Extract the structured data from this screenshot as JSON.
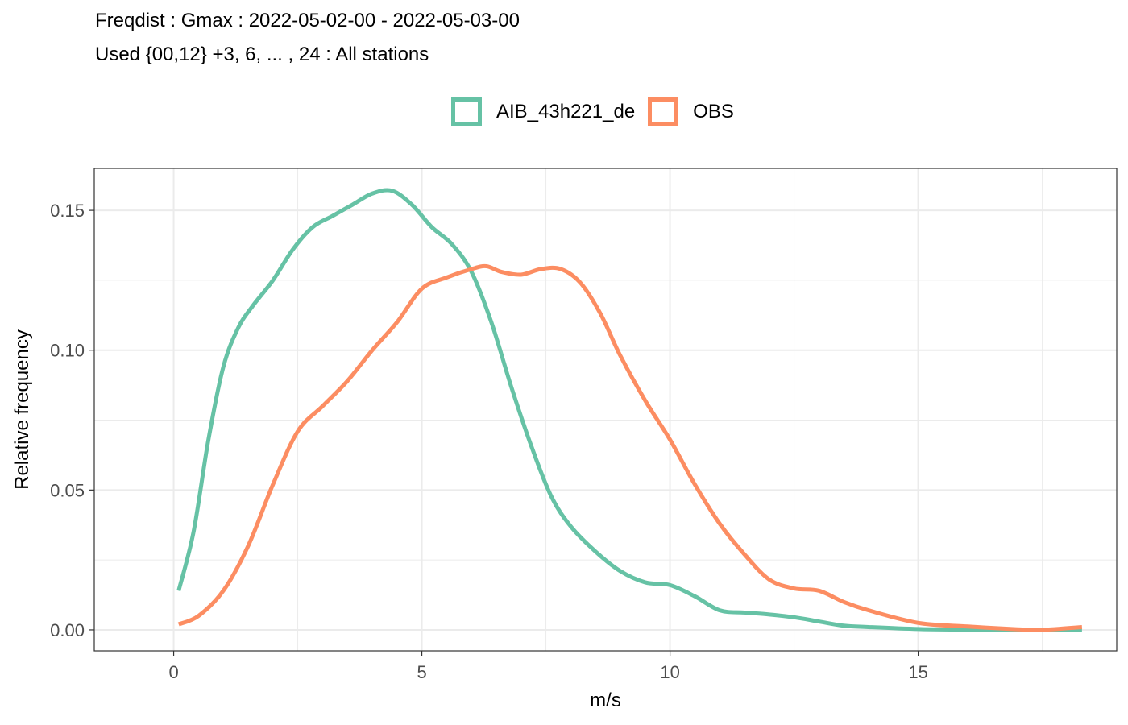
{
  "chart_data": {
    "type": "line",
    "title": "Freqdist : Gmax : 2022-05-02-00 - 2022-05-03-00",
    "subtitle": "Used {00,12} +3, 6, ... , 24 : All stations",
    "xlabel": "m/s",
    "ylabel": "Relative frequency",
    "xlim": [
      -1.6,
      19.0
    ],
    "ylim": [
      -0.0075,
      0.165
    ],
    "x_ticks": [
      0,
      5,
      10,
      15
    ],
    "x_tick_labels": [
      "0",
      "5",
      "10",
      "15"
    ],
    "y_ticks": [
      0.0,
      0.05,
      0.1,
      0.15
    ],
    "y_tick_labels": [
      "0.00",
      "0.05",
      "0.10",
      "0.15"
    ],
    "grid": true,
    "legend_position": "top",
    "series": [
      {
        "name": "AIB_43h221_de",
        "color": "#66c2a5",
        "x": [
          0.1,
          0.4,
          0.7,
          1.0,
          1.3,
          1.6,
          2.0,
          2.4,
          2.8,
          3.2,
          3.6,
          4.0,
          4.4,
          4.8,
          5.2,
          5.6,
          6.0,
          6.4,
          6.8,
          7.2,
          7.6,
          8.0,
          8.5,
          9.0,
          9.5,
          10.0,
          10.5,
          11.0,
          11.5,
          12.0,
          12.5,
          13.0,
          13.5,
          14.0,
          15.0,
          16.0,
          17.0,
          18.3
        ],
        "y": [
          0.014,
          0.035,
          0.068,
          0.094,
          0.108,
          0.116,
          0.125,
          0.136,
          0.144,
          0.148,
          0.152,
          0.156,
          0.157,
          0.152,
          0.144,
          0.138,
          0.128,
          0.11,
          0.087,
          0.066,
          0.048,
          0.037,
          0.028,
          0.021,
          0.017,
          0.016,
          0.012,
          0.007,
          0.0062,
          0.0055,
          0.0045,
          0.003,
          0.0015,
          0.001,
          0.0003,
          0.0001,
          0.0,
          0.0
        ]
      },
      {
        "name": "OBS",
        "color": "#fc8d62",
        "x": [
          0.1,
          0.5,
          1.0,
          1.5,
          2.0,
          2.5,
          3.0,
          3.5,
          4.0,
          4.5,
          5.0,
          5.5,
          6.0,
          6.3,
          6.6,
          7.0,
          7.4,
          7.8,
          8.2,
          8.6,
          9.0,
          9.5,
          10.0,
          10.5,
          11.0,
          11.5,
          12.0,
          12.5,
          13.0,
          13.5,
          14.0,
          15.0,
          16.0,
          17.0,
          17.5,
          18.3
        ],
        "y": [
          0.002,
          0.005,
          0.014,
          0.03,
          0.052,
          0.071,
          0.08,
          0.089,
          0.1,
          0.11,
          0.122,
          0.126,
          0.129,
          0.13,
          0.128,
          0.127,
          0.129,
          0.129,
          0.124,
          0.113,
          0.098,
          0.082,
          0.068,
          0.052,
          0.038,
          0.027,
          0.018,
          0.0148,
          0.014,
          0.01,
          0.007,
          0.0025,
          0.0012,
          0.0002,
          0.0,
          0.001
        ]
      }
    ]
  }
}
